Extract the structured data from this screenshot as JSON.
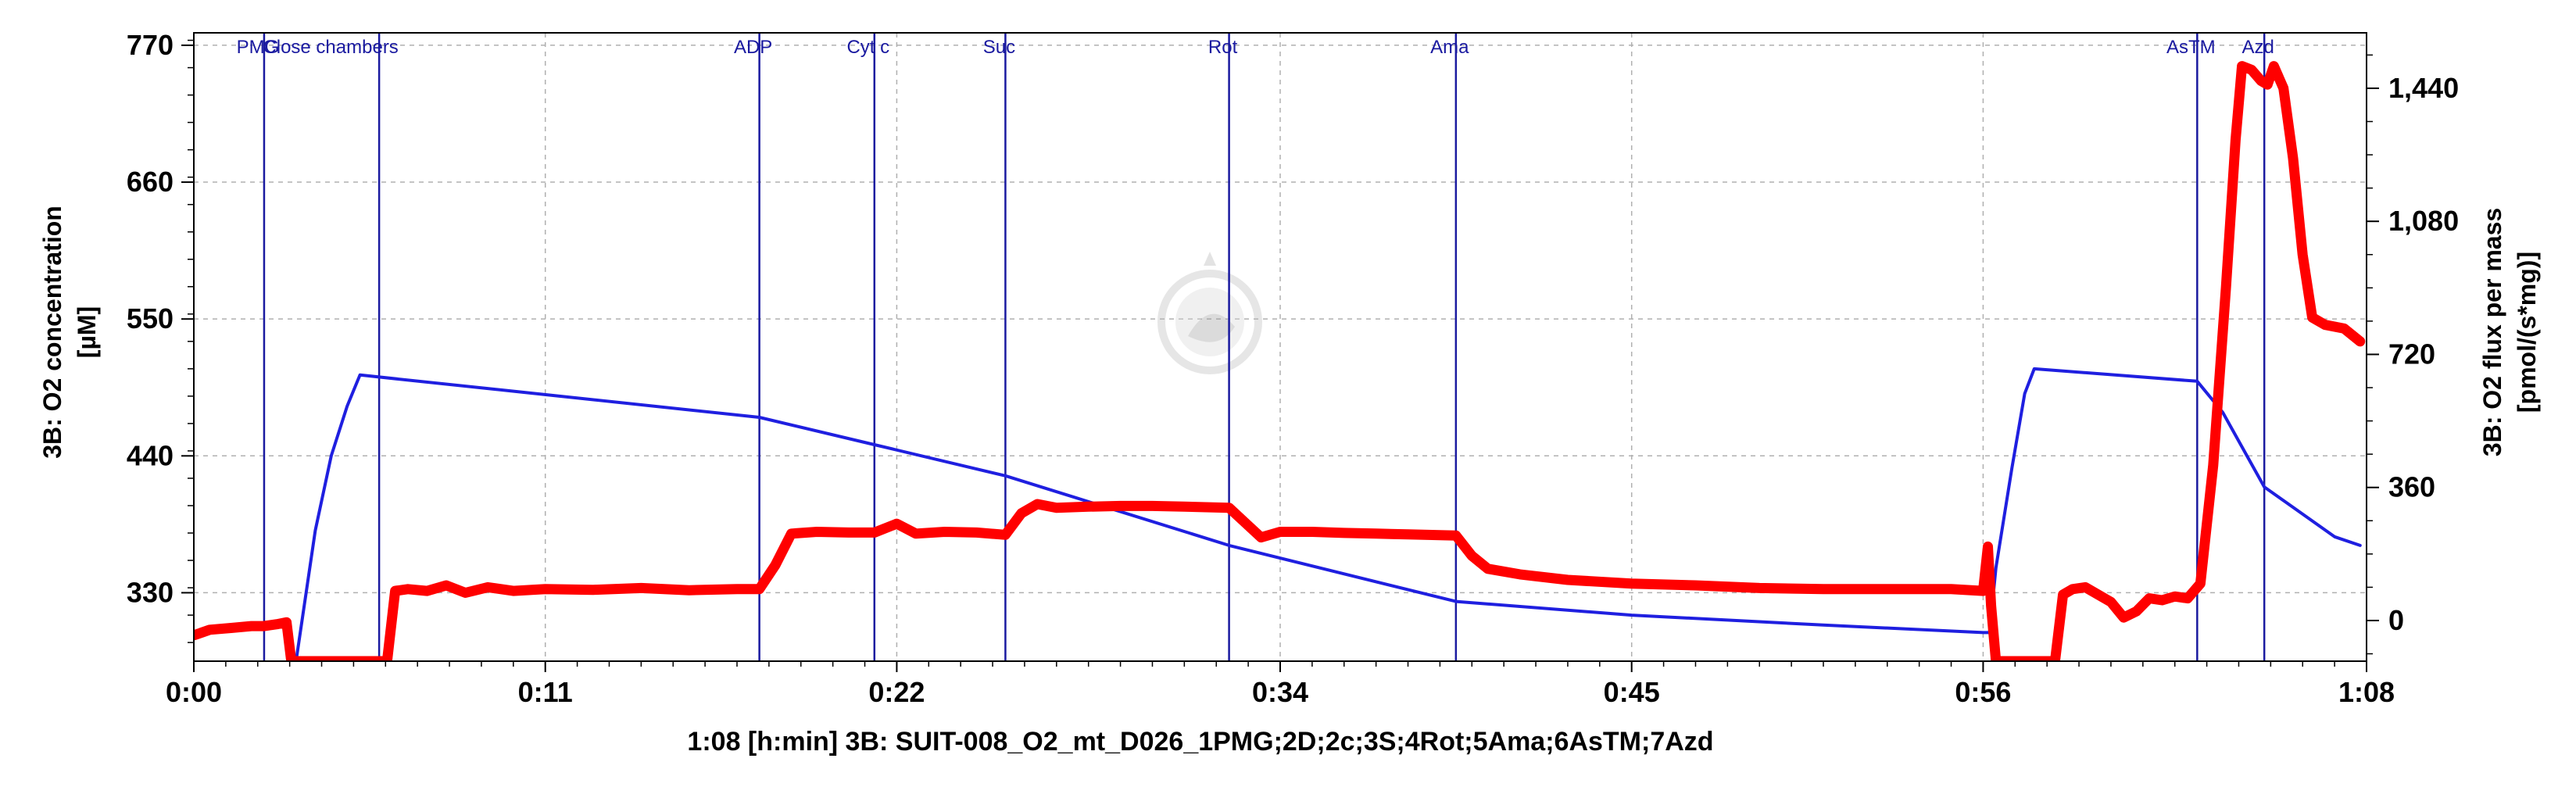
{
  "chart_data": {
    "type": "line",
    "xlabel": "1:08 [h:min] 3B: SUIT-008_O2_mt_D026_1PMG;2D;2c;3S;4Rot;5Ama;6AsTM;7Azd",
    "x_ticks": [
      {
        "t": 0,
        "label": "0:00"
      },
      {
        "t": 11,
        "label": "0:11"
      },
      {
        "t": 22,
        "label": "0:22"
      },
      {
        "t": 34,
        "label": "0:34"
      },
      {
        "t": 45,
        "label": "0:45"
      },
      {
        "t": 56,
        "label": "0:56"
      },
      {
        "t": 68,
        "label": "1:08"
      }
    ],
    "xlim": [
      0,
      68
    ],
    "y_left": {
      "label_line1": "3B: O2 concentration",
      "label_line2": "[µM]",
      "ylim": [
        275,
        780
      ],
      "ticks": [
        330,
        440,
        550,
        660,
        770
      ],
      "tick_labels": [
        "330",
        "440",
        "550",
        "660",
        "770"
      ]
    },
    "y_right": {
      "label_line1": "3B: O2 flux per mass",
      "label_line2": "[pmol/(s*mg)]",
      "ylim": [
        -110,
        1590
      ],
      "ticks": [
        0,
        360,
        720,
        1080,
        1440
      ],
      "tick_labels": [
        "0",
        "360",
        "720",
        "1,080",
        "1,440"
      ]
    },
    "grid": true,
    "markers": [
      {
        "t": 2.2,
        "label": "PMG"
      },
      {
        "t": 5.8,
        "label": "Close chambers"
      },
      {
        "t": 17.7,
        "label": "ADP"
      },
      {
        "t": 21.3,
        "label": "Cyt c"
      },
      {
        "t": 25.4,
        "label": "Suc"
      },
      {
        "t": 32.4,
        "label": "Rot"
      },
      {
        "t": 39.5,
        "label": "Ama"
      },
      {
        "t": 62.7,
        "label": "AsTM"
      },
      {
        "t": 64.8,
        "label": "Azd"
      }
    ],
    "series": [
      {
        "axis": "left",
        "color": "#1f1fe0",
        "points": [
          [
            3.2,
            275
          ],
          [
            3.4,
            310
          ],
          [
            3.8,
            380
          ],
          [
            4.3,
            440
          ],
          [
            4.8,
            480
          ],
          [
            5.2,
            505
          ],
          [
            17.7,
            471
          ],
          [
            21.3,
            449
          ],
          [
            25.4,
            424
          ],
          [
            32.4,
            368
          ],
          [
            39.5,
            323
          ],
          [
            45,
            312
          ],
          [
            51,
            304
          ],
          [
            56,
            298
          ],
          [
            56.2,
            298
          ],
          [
            56.4,
            350
          ],
          [
            56.9,
            430
          ],
          [
            57.3,
            490
          ],
          [
            57.6,
            510
          ],
          [
            62.7,
            500
          ],
          [
            63.5,
            475
          ],
          [
            64.8,
            415
          ],
          [
            67,
            375
          ],
          [
            67.8,
            368
          ]
        ]
      },
      {
        "axis": "right",
        "color": "#ff0000",
        "points": [
          [
            0,
            -40
          ],
          [
            0.5,
            -25
          ],
          [
            1.2,
            -20
          ],
          [
            1.8,
            -15
          ],
          [
            2.2,
            -15
          ],
          [
            2.6,
            -10
          ],
          [
            2.9,
            -5
          ],
          [
            3.05,
            -110
          ],
          [
            6.05,
            -110
          ],
          [
            6.3,
            80
          ],
          [
            6.7,
            85
          ],
          [
            7.3,
            80
          ],
          [
            7.9,
            95
          ],
          [
            8.5,
            75
          ],
          [
            9.2,
            90
          ],
          [
            10,
            80
          ],
          [
            11,
            85
          ],
          [
            12.5,
            83
          ],
          [
            14,
            88
          ],
          [
            15.5,
            82
          ],
          [
            17,
            85
          ],
          [
            17.7,
            85
          ],
          [
            18.2,
            150
          ],
          [
            18.7,
            235
          ],
          [
            19.5,
            240
          ],
          [
            20.5,
            238
          ],
          [
            21.3,
            238
          ],
          [
            22,
            262
          ],
          [
            22.6,
            235
          ],
          [
            23.5,
            240
          ],
          [
            24.5,
            238
          ],
          [
            25.4,
            232
          ],
          [
            25.9,
            290
          ],
          [
            26.4,
            315
          ],
          [
            27,
            305
          ],
          [
            28,
            308
          ],
          [
            29,
            310
          ],
          [
            30,
            310
          ],
          [
            31,
            308
          ],
          [
            32.4,
            305
          ],
          [
            32.9,
            265
          ],
          [
            33.4,
            225
          ],
          [
            34,
            240
          ],
          [
            35,
            240
          ],
          [
            36,
            237
          ],
          [
            37,
            235
          ],
          [
            38,
            233
          ],
          [
            39.5,
            230
          ],
          [
            40,
            175
          ],
          [
            40.5,
            140
          ],
          [
            41.5,
            125
          ],
          [
            43,
            110
          ],
          [
            45,
            100
          ],
          [
            47,
            95
          ],
          [
            49,
            88
          ],
          [
            51,
            85
          ],
          [
            53,
            85
          ],
          [
            55,
            85
          ],
          [
            56,
            80
          ],
          [
            56.15,
            200
          ],
          [
            56.25,
            40
          ],
          [
            56.4,
            -110
          ],
          [
            58.25,
            -110
          ],
          [
            58.5,
            70
          ],
          [
            58.8,
            85
          ],
          [
            59.2,
            90
          ],
          [
            59.6,
            70
          ],
          [
            60,
            50
          ],
          [
            60.4,
            8
          ],
          [
            60.8,
            25
          ],
          [
            61.2,
            60
          ],
          [
            61.6,
            55
          ],
          [
            62,
            65
          ],
          [
            62.4,
            60
          ],
          [
            62.8,
            100
          ],
          [
            63.2,
            420
          ],
          [
            63.6,
            900
          ],
          [
            63.9,
            1300
          ],
          [
            64.1,
            1500
          ],
          [
            64.4,
            1490
          ],
          [
            64.7,
            1460
          ],
          [
            64.9,
            1450
          ],
          [
            65.1,
            1500
          ],
          [
            65.4,
            1440
          ],
          [
            65.7,
            1250
          ],
          [
            66.0,
            990
          ],
          [
            66.3,
            820
          ],
          [
            66.7,
            800
          ],
          [
            67.3,
            790
          ],
          [
            67.8,
            755
          ]
        ]
      }
    ]
  },
  "watermark": {
    "description": "faded circular logo",
    "color": "#cccccc"
  }
}
